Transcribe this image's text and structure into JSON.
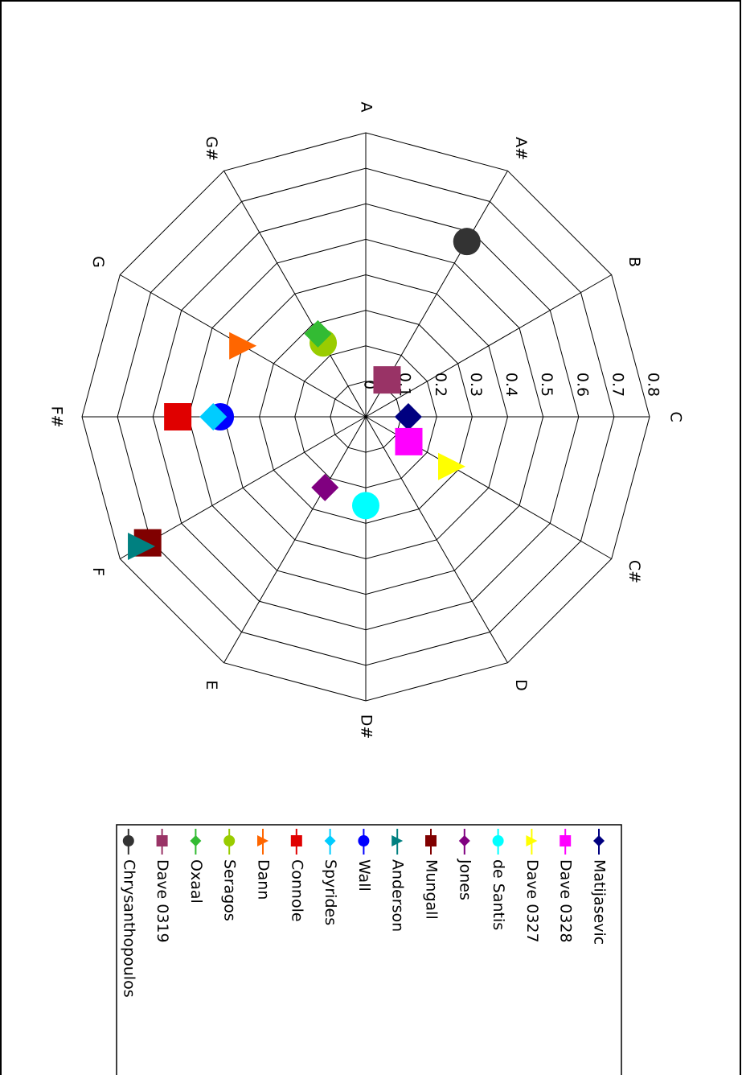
{
  "chart_data": {
    "type": "radar-scatter",
    "categories": [
      "C",
      "C#",
      "D",
      "D#",
      "E",
      "F",
      "F#",
      "G",
      "G#",
      "A",
      "A#",
      "B"
    ],
    "ylim": [
      0,
      0.8
    ],
    "yticks": [
      0,
      0.1,
      0.2,
      0.3,
      0.4,
      0.5,
      0.6,
      0.7,
      0.8
    ],
    "series": [
      {
        "name": "Matijasevic",
        "color": "#000080",
        "marker": "diamond",
        "values": [
          0.12,
          null,
          null,
          null,
          null,
          null,
          null,
          null,
          null,
          null,
          null,
          null
        ]
      },
      {
        "name": "Dave 0328",
        "color": "#ff00ff",
        "marker": "square",
        "values": [
          null,
          0.14,
          null,
          null,
          null,
          null,
          null,
          null,
          null,
          null,
          null,
          null
        ]
      },
      {
        "name": "Dave 0327",
        "color": "#ffff00",
        "marker": "triangle",
        "values": [
          null,
          0.28,
          null,
          null,
          null,
          null,
          null,
          null,
          null,
          null,
          null,
          null
        ]
      },
      {
        "name": "de Santis",
        "color": "#00ffff",
        "marker": "circle",
        "values": [
          null,
          null,
          null,
          0.25,
          null,
          null,
          null,
          null,
          null,
          null,
          null,
          null
        ]
      },
      {
        "name": "Jones",
        "color": "#800080",
        "marker": "diamond",
        "values": [
          null,
          null,
          null,
          null,
          0.23,
          null,
          null,
          null,
          null,
          null,
          null,
          null
        ]
      },
      {
        "name": "Mungall",
        "color": "#800000",
        "marker": "square",
        "values": [
          null,
          null,
          null,
          null,
          null,
          0.71,
          null,
          null,
          null,
          null,
          null,
          null
        ]
      },
      {
        "name": "Anderson",
        "color": "#008080",
        "marker": "triangle",
        "values": [
          null,
          null,
          null,
          null,
          null,
          0.73,
          null,
          null,
          null,
          null,
          null,
          null
        ]
      },
      {
        "name": "Wall",
        "color": "#0000ff",
        "marker": "circle",
        "values": [
          null,
          null,
          null,
          null,
          null,
          null,
          0.41,
          null,
          null,
          null,
          null,
          null
        ]
      },
      {
        "name": "Spyrides",
        "color": "#00ccff",
        "marker": "diamond",
        "values": [
          null,
          null,
          null,
          null,
          null,
          null,
          0.43,
          null,
          null,
          null,
          null,
          null
        ]
      },
      {
        "name": "Connole",
        "color": "#e00000",
        "marker": "square",
        "values": [
          null,
          null,
          null,
          null,
          null,
          null,
          0.53,
          null,
          null,
          null,
          null,
          null
        ]
      },
      {
        "name": "Dann",
        "color": "#ff6600",
        "marker": "triangle",
        "values": [
          null,
          null,
          null,
          null,
          null,
          null,
          null,
          0.4,
          null,
          null,
          null,
          null
        ]
      },
      {
        "name": "Seragos",
        "color": "#99cc00",
        "marker": "circle",
        "values": [
          null,
          null,
          null,
          null,
          null,
          null,
          null,
          null,
          0.24,
          null,
          null,
          null
        ]
      },
      {
        "name": "Oxaal",
        "color": "#33bb33",
        "marker": "diamond",
        "values": [
          null,
          null,
          null,
          null,
          null,
          null,
          null,
          null,
          0.27,
          null,
          null,
          null
        ]
      },
      {
        "name": "Dave 0319",
        "color": "#993366",
        "marker": "square",
        "values": [
          null,
          null,
          null,
          null,
          null,
          null,
          null,
          null,
          null,
          null,
          0.12,
          null
        ]
      },
      {
        "name": "Chrysanthopoulos",
        "color": "#333333",
        "marker": "circle",
        "values": [
          null,
          null,
          null,
          null,
          null,
          null,
          null,
          null,
          null,
          null,
          0.57,
          null
        ]
      }
    ]
  }
}
